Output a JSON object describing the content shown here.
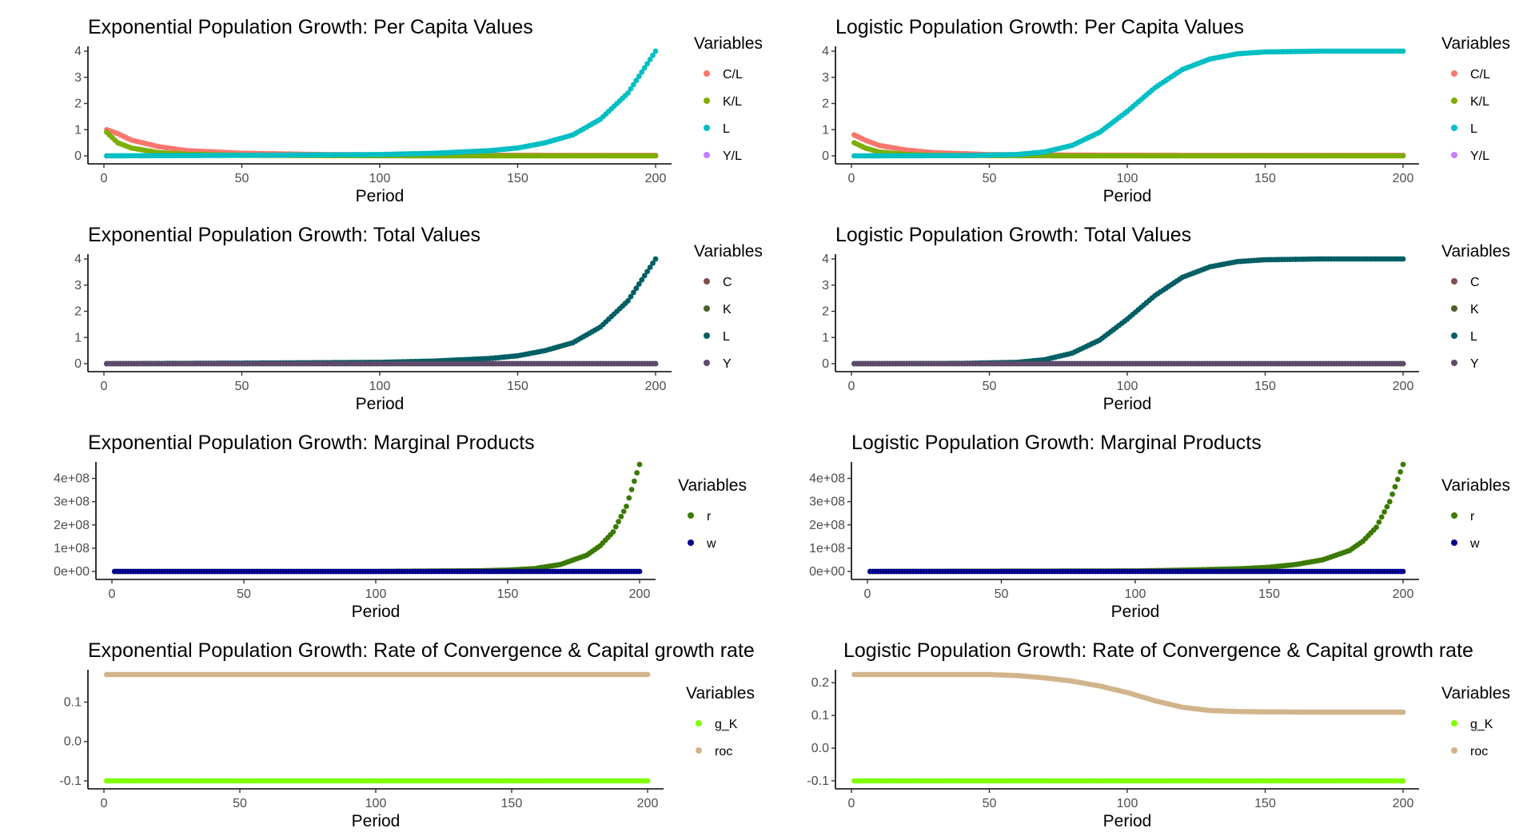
{
  "chart_data": [
    {
      "type": "scatter",
      "title": "Exponential Population Growth: Per Capita Values",
      "xlabel": "Period",
      "ylabel": "",
      "xlim": [
        0,
        200
      ],
      "ylim": [
        0,
        4
      ],
      "x_ticks": [
        0,
        50,
        100,
        150,
        200
      ],
      "y_ticks": [
        0,
        1,
        2,
        3,
        4
      ],
      "y_tick_labels": [
        "0",
        "1",
        "2",
        "3",
        "4"
      ],
      "legend_title": "Variables",
      "legend_position": "right",
      "series": [
        {
          "name": "C/L",
          "color": "#f8766d",
          "x": [
            1,
            5,
            10,
            20,
            30,
            50,
            80,
            120,
            160,
            200
          ],
          "values": [
            1.0,
            0.85,
            0.6,
            0.35,
            0.2,
            0.1,
            0.05,
            0.03,
            0.02,
            0.02
          ]
        },
        {
          "name": "K/L",
          "color": "#7cae00",
          "x": [
            1,
            5,
            10,
            20,
            30,
            50,
            80,
            120,
            160,
            200
          ],
          "values": [
            0.9,
            0.5,
            0.3,
            0.12,
            0.06,
            0.02,
            0.01,
            0.0,
            0.0,
            0.0
          ]
        },
        {
          "name": "L",
          "color": "#00bfc4",
          "x": [
            1,
            50,
            100,
            120,
            140,
            150,
            160,
            170,
            180,
            190,
            200
          ],
          "values": [
            0.0,
            0.02,
            0.05,
            0.1,
            0.2,
            0.3,
            0.5,
            0.8,
            1.4,
            2.4,
            4.0
          ]
        },
        {
          "name": "Y/L",
          "color": "#c77cff",
          "x": [],
          "values": []
        }
      ]
    },
    {
      "type": "scatter",
      "title": "Logistic Population Growth: Per Capita Values",
      "xlabel": "Period",
      "ylabel": "",
      "xlim": [
        0,
        200
      ],
      "ylim": [
        0,
        4
      ],
      "x_ticks": [
        0,
        50,
        100,
        150,
        200
      ],
      "y_ticks": [
        0,
        1,
        2,
        3,
        4
      ],
      "y_tick_labels": [
        "0",
        "1",
        "2",
        "3",
        "4"
      ],
      "legend_title": "Variables",
      "legend_position": "right",
      "series": [
        {
          "name": "C/L",
          "color": "#f8766d",
          "x": [
            1,
            5,
            10,
            20,
            30,
            50,
            80,
            120,
            160,
            200
          ],
          "values": [
            0.8,
            0.6,
            0.4,
            0.22,
            0.12,
            0.05,
            0.03,
            0.02,
            0.02,
            0.02
          ]
        },
        {
          "name": "K/L",
          "color": "#7cae00",
          "x": [
            1,
            5,
            10,
            20,
            30,
            50,
            80,
            120,
            160,
            200
          ],
          "values": [
            0.5,
            0.3,
            0.15,
            0.05,
            0.02,
            0.01,
            0.0,
            0.0,
            0.0,
            0.0
          ]
        },
        {
          "name": "L",
          "color": "#00bfc4",
          "x": [
            1,
            40,
            60,
            70,
            80,
            90,
            100,
            110,
            120,
            130,
            140,
            150,
            170,
            200
          ],
          "values": [
            0.0,
            0.01,
            0.05,
            0.15,
            0.4,
            0.9,
            1.7,
            2.6,
            3.3,
            3.7,
            3.9,
            3.97,
            4.0,
            4.0
          ]
        },
        {
          "name": "Y/L",
          "color": "#c77cff",
          "x": [],
          "values": []
        }
      ]
    },
    {
      "type": "scatter",
      "title": "Exponential Population Growth: Total Values",
      "xlabel": "Period",
      "ylabel": "",
      "xlim": [
        0,
        200
      ],
      "ylim": [
        0,
        4
      ],
      "x_ticks": [
        0,
        50,
        100,
        150,
        200
      ],
      "y_ticks": [
        0,
        1,
        2,
        3,
        4
      ],
      "y_tick_labels": [
        "0",
        "1",
        "2",
        "3",
        "4"
      ],
      "legend_title": "Variables",
      "legend_position": "right",
      "series": [
        {
          "name": "C",
          "color": "#7f4f4f",
          "x": [
            1,
            200
          ],
          "values": [
            0.0,
            0.0
          ]
        },
        {
          "name": "K",
          "color": "#4b5e2a",
          "x": [
            1,
            200
          ],
          "values": [
            0.0,
            0.0
          ]
        },
        {
          "name": "L",
          "color": "#005f65",
          "x": [
            1,
            50,
            100,
            120,
            140,
            150,
            160,
            170,
            180,
            190,
            200
          ],
          "values": [
            0.0,
            0.02,
            0.05,
            0.1,
            0.2,
            0.3,
            0.5,
            0.8,
            1.4,
            2.4,
            4.0
          ]
        },
        {
          "name": "Y",
          "color": "#5d4a6b",
          "x": [
            1,
            200
          ],
          "values": [
            0.0,
            0.0
          ]
        }
      ]
    },
    {
      "type": "scatter",
      "title": "Logistic Population Growth: Total Values",
      "xlabel": "Period",
      "ylabel": "",
      "xlim": [
        0,
        200
      ],
      "ylim": [
        0,
        4
      ],
      "x_ticks": [
        0,
        50,
        100,
        150,
        200
      ],
      "y_ticks": [
        0,
        1,
        2,
        3,
        4
      ],
      "y_tick_labels": [
        "0",
        "1",
        "2",
        "3",
        "4"
      ],
      "legend_title": "Variables",
      "legend_position": "right",
      "series": [
        {
          "name": "C",
          "color": "#7f4f4f",
          "x": [
            1,
            200
          ],
          "values": [
            0.0,
            0.0
          ]
        },
        {
          "name": "K",
          "color": "#4b5e2a",
          "x": [
            1,
            200
          ],
          "values": [
            0.0,
            0.0
          ]
        },
        {
          "name": "L",
          "color": "#005f65",
          "x": [
            1,
            40,
            60,
            70,
            80,
            90,
            100,
            110,
            120,
            130,
            140,
            150,
            170,
            200
          ],
          "values": [
            0.0,
            0.01,
            0.05,
            0.15,
            0.4,
            0.9,
            1.7,
            2.6,
            3.3,
            3.7,
            3.9,
            3.97,
            4.0,
            4.0
          ]
        },
        {
          "name": "Y",
          "color": "#5d4a6b",
          "x": [
            1,
            200
          ],
          "values": [
            0.0,
            0.0
          ]
        }
      ]
    },
    {
      "type": "scatter",
      "title": "Exponential Population Growth: Marginal Products",
      "xlabel": "Period",
      "ylabel": "",
      "xlim": [
        0,
        200
      ],
      "ylim": [
        0,
        450000000
      ],
      "x_ticks": [
        0,
        50,
        100,
        150,
        200
      ],
      "y_ticks": [
        0,
        100000000,
        200000000,
        300000000,
        400000000
      ],
      "y_tick_labels": [
        "0e+00",
        "1e+08",
        "2e+08",
        "3e+08",
        "4e+08"
      ],
      "legend_title": "Variables",
      "legend_position": "right",
      "series": [
        {
          "name": "r",
          "color": "#3b7a00",
          "x": [
            1,
            100,
            140,
            150,
            160,
            170,
            180,
            185,
            190,
            195,
            200
          ],
          "values": [
            0,
            0,
            3000000,
            6000000,
            12000000,
            30000000,
            70000000,
            110000000,
            170000000,
            280000000,
            460000000
          ]
        },
        {
          "name": "w",
          "color": "#00008b",
          "x": [
            1,
            200
          ],
          "values": [
            0,
            0
          ]
        }
      ]
    },
    {
      "type": "scatter",
      "title": "Logistic Population Growth: Marginal Products",
      "xlabel": "Period",
      "ylabel": "",
      "xlim": [
        0,
        200
      ],
      "ylim": [
        0,
        450000000
      ],
      "x_ticks": [
        0,
        50,
        100,
        150,
        200
      ],
      "y_ticks": [
        0,
        100000000,
        200000000,
        300000000,
        400000000
      ],
      "y_tick_labels": [
        "0e+00",
        "1e+08",
        "2e+08",
        "3e+08",
        "4e+08"
      ],
      "legend_title": "Variables",
      "legend_position": "right",
      "series": [
        {
          "name": "r",
          "color": "#3b7a00",
          "x": [
            1,
            100,
            120,
            140,
            150,
            160,
            170,
            180,
            185,
            190,
            195,
            200
          ],
          "values": [
            0,
            2000000,
            6000000,
            12000000,
            18000000,
            30000000,
            50000000,
            90000000,
            130000000,
            190000000,
            300000000,
            460000000
          ]
        },
        {
          "name": "w",
          "color": "#00008b",
          "x": [
            1,
            200
          ],
          "values": [
            0,
            0
          ]
        }
      ]
    },
    {
      "type": "scatter",
      "title": "Exponential Population Growth: Rate of Convergence & Capital growth rate",
      "xlabel": "Period",
      "ylabel": "",
      "xlim": [
        0,
        200
      ],
      "ylim": [
        -0.1,
        0.17
      ],
      "x_ticks": [
        0,
        50,
        100,
        150,
        200
      ],
      "y_ticks": [
        -0.1,
        0.0,
        0.1
      ],
      "y_tick_labels": [
        "-0.1",
        "0.0",
        "0.1"
      ],
      "legend_title": "Variables",
      "legend_position": "right",
      "series": [
        {
          "name": "g_K",
          "color": "#7fff00",
          "x": [
            1,
            200
          ],
          "values": [
            -0.1,
            -0.1
          ]
        },
        {
          "name": "roc",
          "color": "#d2b48c",
          "x": [
            1,
            200
          ],
          "values": [
            0.17,
            0.17
          ]
        }
      ]
    },
    {
      "type": "scatter",
      "title": "Logistic Population Growth: Rate of Convergence & Capital growth rate",
      "xlabel": "Period",
      "ylabel": "",
      "xlim": [
        0,
        200
      ],
      "ylim": [
        -0.1,
        0.225
      ],
      "x_ticks": [
        0,
        50,
        100,
        150,
        200
      ],
      "y_ticks": [
        -0.1,
        0.0,
        0.1,
        0.2
      ],
      "y_tick_labels": [
        "-0.1",
        "0.0",
        "0.1",
        "0.2"
      ],
      "legend_title": "Variables",
      "legend_position": "right",
      "series": [
        {
          "name": "g_K",
          "color": "#7fff00",
          "x": [
            1,
            200
          ],
          "values": [
            -0.1,
            -0.1
          ]
        },
        {
          "name": "roc",
          "color": "#d2b48c",
          "x": [
            1,
            50,
            60,
            70,
            80,
            90,
            100,
            110,
            120,
            130,
            140,
            150,
            170,
            200
          ],
          "values": [
            0.225,
            0.225,
            0.222,
            0.215,
            0.205,
            0.19,
            0.17,
            0.145,
            0.125,
            0.115,
            0.112,
            0.111,
            0.11,
            0.11
          ]
        }
      ]
    }
  ]
}
